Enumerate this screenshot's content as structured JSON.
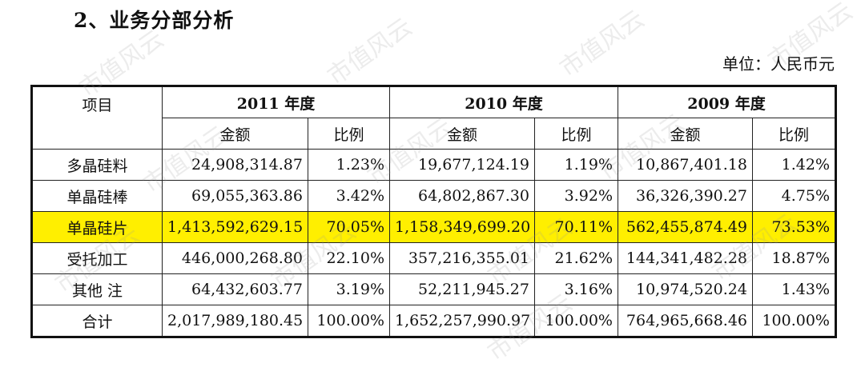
{
  "heading": "2、业务分部分析",
  "unit": "单位：人民币元",
  "watermark": "市值风云",
  "table": {
    "item_header": "项目",
    "years": [
      "2011 年度",
      "2010 年度",
      "2009 年度"
    ],
    "sub_headers": [
      "金额",
      "比例"
    ],
    "rows": [
      {
        "name": "多晶硅料",
        "values": [
          "24,908,314.87",
          "1.23%",
          "19,677,124.19",
          "1.19%",
          "10,867,401.18",
          "1.42%"
        ],
        "highlight": false
      },
      {
        "name": "单晶硅棒",
        "values": [
          "69,055,363.86",
          "3.42%",
          "64,802,867.30",
          "3.92%",
          "36,326,390.27",
          "4.75%"
        ],
        "highlight": false
      },
      {
        "name": "单晶硅片",
        "values": [
          "1,413,592,629.15",
          "70.05%",
          "1,158,349,699.20",
          "70.11%",
          "562,455,874.49",
          "73.53%"
        ],
        "highlight": true,
        "highlight_color": "#ffef00"
      },
      {
        "name": "受托加工",
        "values": [
          "446,000,268.80",
          "22.10%",
          "357,216,355.01",
          "21.62%",
          "144,341,482.28",
          "18.87%"
        ],
        "highlight": false
      },
      {
        "name": "其他 注",
        "values": [
          "64,432,603.77",
          "3.19%",
          "52,211,945.27",
          "3.16%",
          "10,974,520.24",
          "1.43%"
        ],
        "highlight": false
      },
      {
        "name": "合计",
        "values": [
          "2,017,989,180.45",
          "100.00%",
          "1,652,257,990.97",
          "100.00%",
          "764,965,668.46",
          "100.00%"
        ],
        "highlight": false
      }
    ]
  }
}
